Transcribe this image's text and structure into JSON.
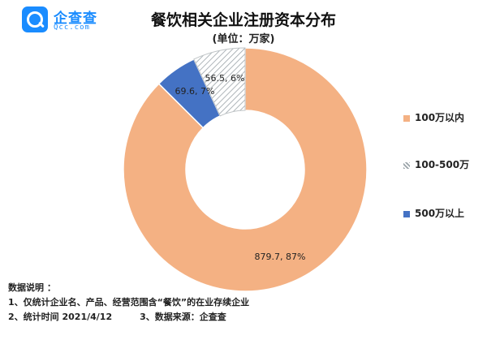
{
  "logo": {
    "name": "企查查",
    "domain": "Qcc.com"
  },
  "chart_data": {
    "type": "pie",
    "title": "餐饮相关企业注册资本分布",
    "subtitle": "(单位：万家)",
    "categories": [
      "100万以内",
      "100-500万",
      "500万以上"
    ],
    "values": [
      879.7,
      69.6,
      56.5
    ],
    "percent": [
      87,
      7,
      6
    ],
    "data_labels": [
      "879.7, 87%",
      "69.6, 7%",
      "56.5, 6%"
    ],
    "colors": [
      "#f4b183",
      "#ffffff",
      "#4472c4"
    ],
    "pattern": [
      "solid",
      "hatch",
      "solid"
    ],
    "donut": true,
    "legend_position": "right"
  },
  "notes": {
    "heading": "数据说明 ：",
    "line1": "1、仅统计企业名、产品、经营范围含“餐饮”的在业存续企业",
    "line2a": "2、统计时间  2021/4/12",
    "line2b": "3、数据来源：企查查"
  }
}
